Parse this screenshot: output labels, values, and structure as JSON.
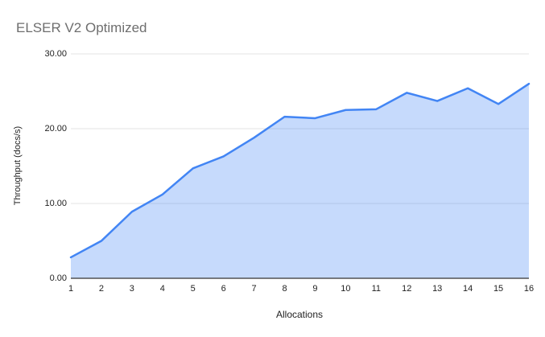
{
  "title": "ELSER V2 Optimized",
  "colors": {
    "line": "#4285f4",
    "fill": "rgba(66,133,244,0.30)",
    "grid": "#e3e3e3",
    "axis": "#333333",
    "tick_text": "#222222",
    "title_text": "#6e6e6e"
  },
  "chart_data": {
    "type": "area",
    "title": "ELSER V2 Optimized",
    "xlabel": "Allocations",
    "ylabel": "Throughput (docs/s)",
    "x": [
      1,
      2,
      3,
      4,
      5,
      6,
      7,
      8,
      9,
      10,
      11,
      12,
      13,
      14,
      15,
      16
    ],
    "values": [
      2.8,
      5.0,
      8.9,
      11.2,
      14.7,
      16.3,
      18.8,
      21.6,
      21.4,
      22.5,
      22.6,
      24.8,
      23.7,
      25.4,
      23.3,
      26.0
    ],
    "series_name": "Throughput",
    "xticks": [
      "1",
      "2",
      "3",
      "4",
      "5",
      "6",
      "7",
      "8",
      "9",
      "10",
      "11",
      "12",
      "13",
      "14",
      "15",
      "16"
    ],
    "yticks": [
      "0.00",
      "10.00",
      "20.00",
      "30.00"
    ],
    "ytick_values": [
      0,
      10,
      20,
      30
    ],
    "ylim": [
      0,
      30
    ],
    "grid": true,
    "legend": "none"
  }
}
